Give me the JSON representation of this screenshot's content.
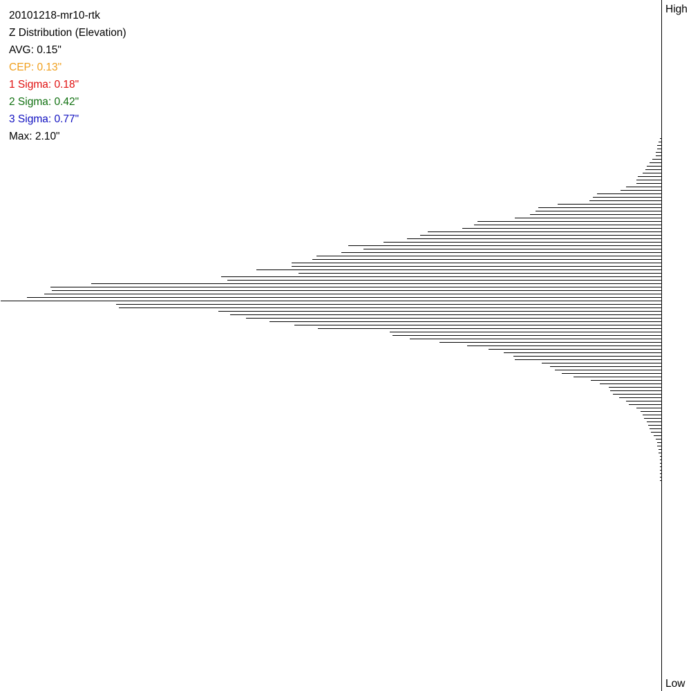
{
  "header": {
    "run_name": "20101218-mr10-rtk",
    "title": "Z Distribution (Elevation)",
    "avg": "AVG: 0.15\"",
    "cep": "CEP: 0.13\"",
    "sigma1": "1 Sigma: 0.18\"",
    "sigma2": "2 Sigma: 0.42\"",
    "sigma3": "3 Sigma: 0.77\"",
    "max": "Max: 2.10\""
  },
  "colors": {
    "text": "#000000",
    "cep": "#f0a01e",
    "sigma1": "#e01010",
    "sigma2": "#107010",
    "sigma3": "#1010c0",
    "bars": "#000000"
  },
  "axis": {
    "high_label": "High",
    "low_label": "Low"
  },
  "chart_data": {
    "type": "bar",
    "orientation": "horizontal",
    "title": "Z Distribution (Elevation)",
    "ylabel_top": "High",
    "ylabel_bottom": "Low",
    "note": "",
    "values": [
      1,
      2,
      3,
      3,
      4,
      4,
      6,
      8,
      10,
      11,
      13,
      16,
      17,
      17,
      24,
      28,
      44,
      47,
      49,
      71,
      84,
      86,
      90,
      100,
      126,
      128,
      136,
      160,
      165,
      174,
      190,
      214,
      204,
      219,
      236,
      239,
      253,
      253,
      277,
      248,
      301,
      297,
      390,
      418,
      417,
      422,
      434,
      452,
      373,
      371,
      303,
      295,
      284,
      268,
      251,
      235,
      186,
      184,
      172,
      152,
      133,
      118,
      108,
      101,
      100,
      82,
      76,
      73,
      68,
      60,
      48,
      42,
      36,
      35,
      33,
      29,
      24,
      22,
      17,
      14,
      13,
      12,
      10,
      9,
      8,
      7,
      5,
      4,
      3,
      3,
      2,
      2,
      1,
      1,
      1,
      1,
      1,
      1,
      1,
      1
    ]
  }
}
